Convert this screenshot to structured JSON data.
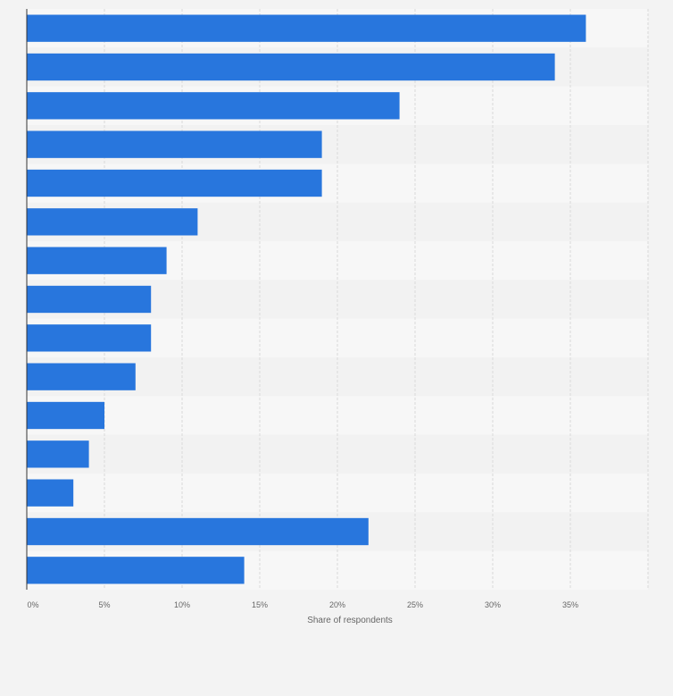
{
  "chart_data": {
    "type": "bar",
    "orientation": "horizontal",
    "categories": [
      "",
      "",
      "",
      "",
      "",
      "",
      "",
      "",
      "",
      "",
      "",
      "",
      "",
      "",
      ""
    ],
    "values": [
      36,
      34,
      24,
      19,
      19,
      11,
      9,
      8,
      8,
      7,
      5,
      4,
      3,
      22,
      14
    ],
    "xlabel": "Share of respondents",
    "ylabel": "",
    "xlim": [
      0,
      40
    ],
    "x_ticks": [
      0,
      5,
      10,
      15,
      20,
      25,
      30,
      35
    ],
    "x_tick_labels": [
      "0%",
      "5%",
      "10%",
      "15%",
      "20%",
      "25%",
      "30%",
      "35%"
    ],
    "grid": true,
    "legend": "none",
    "colors": {
      "bar": "#2876dd",
      "background": "#f3f3f3",
      "band_light": "#f7f7f7",
      "band_dark": "#f2f2f2",
      "gridline": "#d9d9d9",
      "axis": "#333333",
      "text": "#666666"
    }
  }
}
